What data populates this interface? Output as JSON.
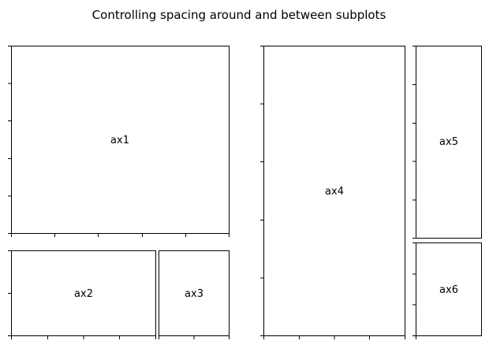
{
  "figure": {
    "title": "Controlling spacing around and between subplots",
    "background": "#ffffff",
    "frame_color": "#000000"
  },
  "axes": [
    {
      "id": "ax1",
      "label": "ax1",
      "x_ticks": 6,
      "y_ticks": 6
    },
    {
      "id": "ax2",
      "label": "ax2",
      "x_ticks": 5,
      "y_ticks": 3
    },
    {
      "id": "ax3",
      "label": "ax3",
      "x_ticks": 3,
      "y_ticks": 0
    },
    {
      "id": "ax4",
      "label": "ax4",
      "x_ticks": 5,
      "y_ticks": 6
    },
    {
      "id": "ax5",
      "label": "ax5",
      "x_ticks": 0,
      "y_ticks": 6
    },
    {
      "id": "ax6",
      "label": "ax6",
      "x_ticks": 1,
      "y_ticks": 4
    }
  ]
}
